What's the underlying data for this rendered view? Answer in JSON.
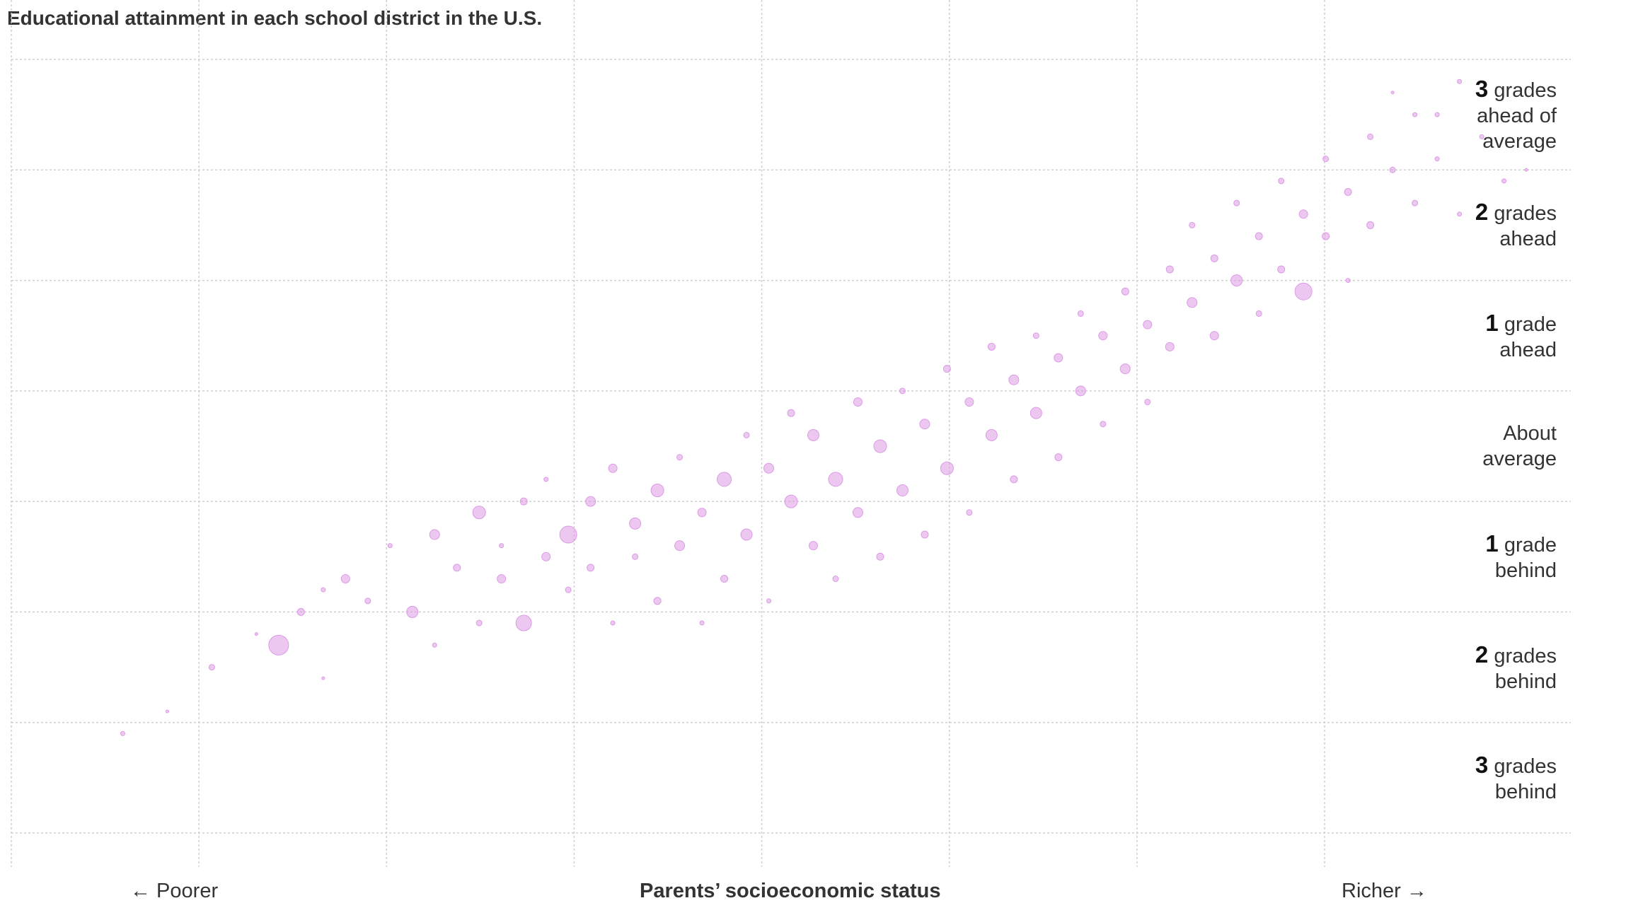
{
  "chart_data": {
    "type": "scatter",
    "title": "Educational attainment in each school district in the U.S.",
    "xlabel": "Parents’ socioeconomic status",
    "x_left_label": "← Poorer",
    "x_right_label": "Richer →",
    "xlim": [
      -4,
      3
    ],
    "ylim": [
      -3.5,
      3.5
    ],
    "y_tick_values": [
      3,
      2,
      1,
      0,
      -1,
      -2,
      -3
    ],
    "y_tick_labels": [
      {
        "num": "3",
        "text": "grades",
        "text2": "ahead of",
        "text3": "average"
      },
      {
        "num": "2",
        "text": "grades",
        "text2": "ahead",
        "text3": ""
      },
      {
        "num": "1",
        "text": "grade",
        "text2": "ahead",
        "text3": ""
      },
      {
        "num": "",
        "text": "About",
        "text2": "average",
        "text3": ""
      },
      {
        "num": "1",
        "text": "grade",
        "text2": "behind",
        "text3": ""
      },
      {
        "num": "2",
        "text": "grades",
        "text2": "behind",
        "text3": ""
      },
      {
        "num": "3",
        "text": "grades",
        "text2": "behind",
        "text3": ""
      }
    ],
    "point_color": "#dd9ae6",
    "grid": true,
    "series": [
      {
        "values": [
          [
            -3.5,
            -2.6,
            3
          ],
          [
            -3.3,
            -2.4,
            2
          ],
          [
            -3.1,
            -2.0,
            4
          ],
          [
            -2.9,
            -1.7,
            2
          ],
          [
            -2.8,
            -1.8,
            14
          ],
          [
            -2.7,
            -1.5,
            5
          ],
          [
            -2.6,
            -1.3,
            3
          ],
          [
            -2.6,
            -2.1,
            2
          ],
          [
            -2.5,
            -1.2,
            6
          ],
          [
            -2.4,
            -1.4,
            4
          ],
          [
            -2.3,
            -0.9,
            3
          ],
          [
            -2.2,
            -1.5,
            8
          ],
          [
            -2.1,
            -0.8,
            7
          ],
          [
            -2.1,
            -1.8,
            3
          ],
          [
            -2.0,
            -1.1,
            5
          ],
          [
            -1.9,
            -0.6,
            9
          ],
          [
            -1.9,
            -1.6,
            4
          ],
          [
            -1.8,
            -1.2,
            6
          ],
          [
            -1.8,
            -0.9,
            3
          ],
          [
            -1.7,
            -0.5,
            5
          ],
          [
            -1.7,
            -1.6,
            11
          ],
          [
            -1.6,
            -1.0,
            6
          ],
          [
            -1.6,
            -0.3,
            3
          ],
          [
            -1.5,
            -0.8,
            12
          ],
          [
            -1.5,
            -1.3,
            4
          ],
          [
            -1.4,
            -0.5,
            7
          ],
          [
            -1.4,
            -1.1,
            5
          ],
          [
            -1.3,
            -0.2,
            6
          ],
          [
            -1.3,
            -1.6,
            3
          ],
          [
            -1.2,
            -0.7,
            8
          ],
          [
            -1.2,
            -1.0,
            4
          ],
          [
            -1.1,
            -0.4,
            9
          ],
          [
            -1.1,
            -1.4,
            5
          ],
          [
            -1.0,
            -0.1,
            4
          ],
          [
            -1.0,
            -0.9,
            7
          ],
          [
            -0.9,
            -0.6,
            6
          ],
          [
            -0.9,
            -1.6,
            3
          ],
          [
            -0.8,
            -0.3,
            10
          ],
          [
            -0.8,
            -1.2,
            5
          ],
          [
            -0.7,
            0.1,
            4
          ],
          [
            -0.7,
            -0.8,
            8
          ],
          [
            -0.6,
            -0.2,
            7
          ],
          [
            -0.6,
            -1.4,
            3
          ],
          [
            -0.5,
            -0.5,
            9
          ],
          [
            -0.5,
            0.3,
            5
          ],
          [
            -0.4,
            -0.9,
            6
          ],
          [
            -0.4,
            0.1,
            8
          ],
          [
            -0.3,
            -0.3,
            10
          ],
          [
            -0.3,
            -1.2,
            4
          ],
          [
            -0.2,
            0.4,
            6
          ],
          [
            -0.2,
            -0.6,
            7
          ],
          [
            -0.1,
            0.0,
            9
          ],
          [
            -0.1,
            -1.0,
            5
          ],
          [
            0.0,
            0.5,
            4
          ],
          [
            0.0,
            -0.4,
            8
          ],
          [
            0.1,
            0.2,
            7
          ],
          [
            0.1,
            -0.8,
            5
          ],
          [
            0.2,
            0.7,
            5
          ],
          [
            0.2,
            -0.2,
            9
          ],
          [
            0.3,
            0.4,
            6
          ],
          [
            0.3,
            -0.6,
            4
          ],
          [
            0.4,
            0.9,
            5
          ],
          [
            0.4,
            0.1,
            8
          ],
          [
            0.5,
            0.6,
            7
          ],
          [
            0.5,
            -0.3,
            5
          ],
          [
            0.6,
            1.0,
            4
          ],
          [
            0.6,
            0.3,
            8
          ],
          [
            0.7,
            0.8,
            6
          ],
          [
            0.7,
            -0.1,
            5
          ],
          [
            0.8,
            1.2,
            4
          ],
          [
            0.8,
            0.5,
            7
          ],
          [
            0.9,
            1.0,
            6
          ],
          [
            0.9,
            0.2,
            4
          ],
          [
            1.0,
            1.4,
            5
          ],
          [
            1.0,
            0.7,
            7
          ],
          [
            1.1,
            1.1,
            6
          ],
          [
            1.1,
            0.4,
            4
          ],
          [
            1.2,
            1.6,
            5
          ],
          [
            1.2,
            0.9,
            6
          ],
          [
            1.3,
            1.3,
            7
          ],
          [
            1.3,
            2.0,
            4
          ],
          [
            1.4,
            1.7,
            5
          ],
          [
            1.4,
            1.0,
            6
          ],
          [
            1.5,
            2.2,
            4
          ],
          [
            1.5,
            1.5,
            8
          ],
          [
            1.6,
            1.9,
            5
          ],
          [
            1.6,
            1.2,
            4
          ],
          [
            1.7,
            2.4,
            4
          ],
          [
            1.7,
            1.6,
            5
          ],
          [
            1.8,
            2.1,
            6
          ],
          [
            1.8,
            1.4,
            12
          ],
          [
            1.9,
            2.6,
            4
          ],
          [
            1.9,
            1.9,
            5
          ],
          [
            2.0,
            2.3,
            5
          ],
          [
            2.0,
            1.5,
            3
          ],
          [
            2.1,
            2.8,
            4
          ],
          [
            2.1,
            2.0,
            5
          ],
          [
            2.2,
            2.5,
            4
          ],
          [
            2.3,
            3.0,
            3
          ],
          [
            2.3,
            2.2,
            4
          ],
          [
            2.4,
            2.6,
            3
          ],
          [
            2.5,
            3.3,
            3
          ],
          [
            2.5,
            2.1,
            3
          ],
          [
            2.6,
            2.8,
            3
          ],
          [
            2.7,
            2.4,
            3
          ],
          [
            2.8,
            2.5,
            2
          ],
          [
            2.4,
            3.0,
            3
          ],
          [
            2.2,
            3.2,
            2
          ]
        ]
      }
    ]
  }
}
